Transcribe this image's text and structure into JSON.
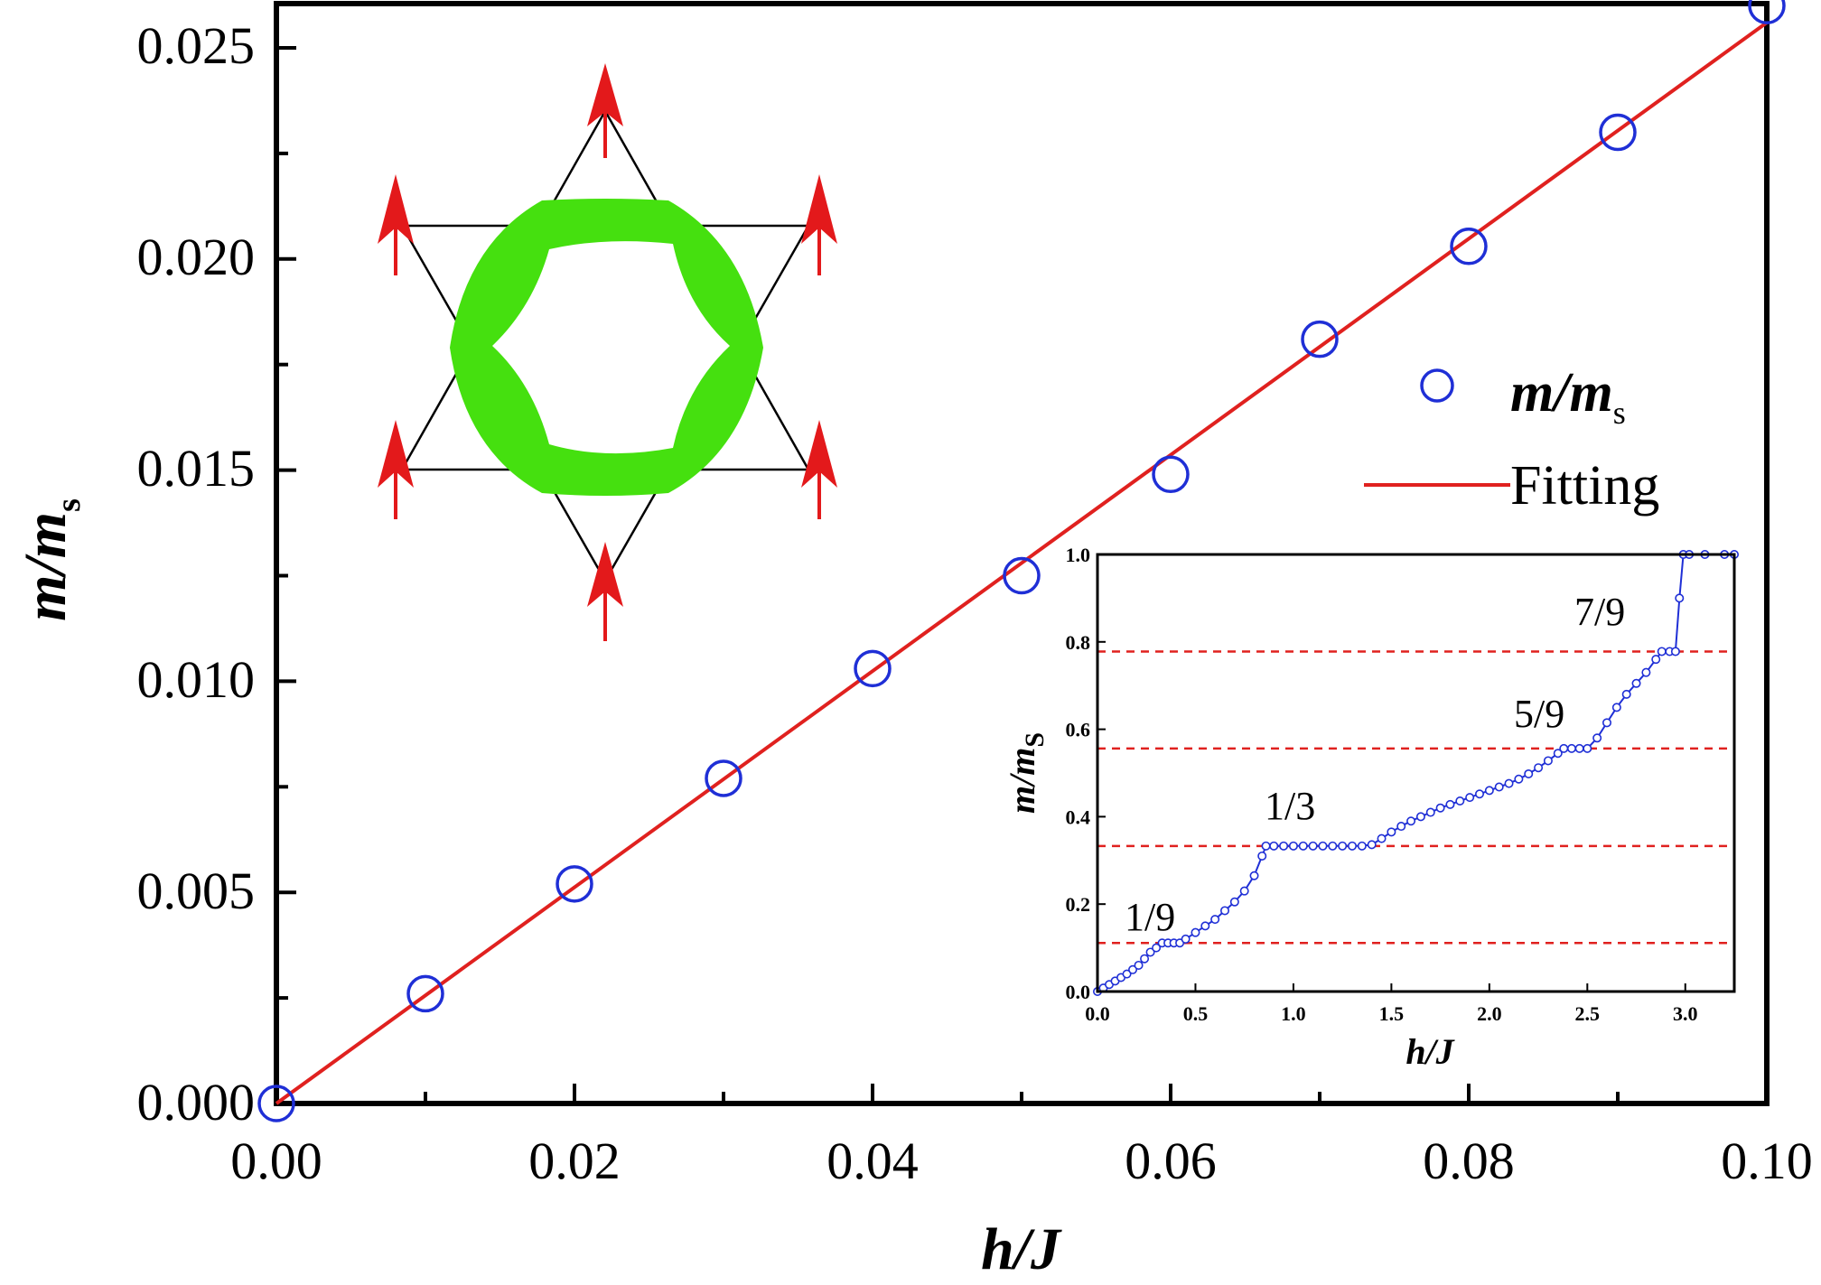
{
  "chart_data": [
    {
      "type": "scatter",
      "xlabel": "h/J",
      "ylabel": "m/m_s",
      "xlim": [
        0.0,
        0.1
      ],
      "ylim": [
        0.0,
        0.026
      ],
      "xticks": [
        "0.00",
        "0.02",
        "0.04",
        "0.06",
        "0.08",
        "0.10"
      ],
      "yticks": [
        "0.000",
        "0.005",
        "0.010",
        "0.015",
        "0.020",
        "0.025"
      ],
      "legend_position": "right",
      "series": [
        {
          "name": "m/m_s",
          "style": "open-circle",
          "color": "#1f2fd6",
          "x": [
            0.0,
            0.01,
            0.02,
            0.03,
            0.04,
            0.05,
            0.06,
            0.07,
            0.08,
            0.09,
            0.1
          ],
          "y": [
            0.0,
            0.0026,
            0.0052,
            0.0077,
            0.0103,
            0.0125,
            0.0149,
            0.0181,
            0.0203,
            0.023,
            0.026
          ]
        },
        {
          "name": "Fitting",
          "style": "line",
          "color": "#e0211f",
          "x": [
            0.0,
            0.1
          ],
          "y": [
            0.0,
            0.0256
          ]
        }
      ],
      "legend_labels": {
        "symbol_main": "m/m",
        "symbol_sub": "s",
        "fit": "Fitting"
      },
      "axis_title_parts": {
        "x_main": "h/J",
        "y_main": "m/m",
        "y_sub": "s"
      }
    },
    {
      "type": "line",
      "role": "inset",
      "xlabel": "h/J",
      "ylabel": "m/m_S",
      "xlim": [
        0.0,
        3.25
      ],
      "ylim": [
        0.0,
        1.0
      ],
      "xticks": [
        "0.0",
        "0.5",
        "1.0",
        "1.5",
        "2.0",
        "2.5",
        "3.0"
      ],
      "yticks": [
        "0.0",
        "0.2",
        "0.4",
        "0.6",
        "0.8",
        "1.0"
      ],
      "axis_title_parts": {
        "x_main": "h/J",
        "y_main": "m/m",
        "y_sub": "S"
      },
      "plateaus": [
        {
          "label": "1/9",
          "y": 0.111
        },
        {
          "label": "1/3",
          "y": 0.333
        },
        {
          "label": "5/9",
          "y": 0.556
        },
        {
          "label": "7/9",
          "y": 0.778
        }
      ],
      "series": [
        {
          "style": "line-open-circle",
          "color": "#1f2fd6",
          "x": [
            0.0,
            0.03,
            0.06,
            0.09,
            0.12,
            0.15,
            0.18,
            0.21,
            0.24,
            0.27,
            0.3,
            0.33,
            0.36,
            0.39,
            0.42,
            0.45,
            0.5,
            0.55,
            0.6,
            0.65,
            0.7,
            0.75,
            0.8,
            0.84,
            0.86,
            0.9,
            0.95,
            1.0,
            1.05,
            1.1,
            1.15,
            1.2,
            1.25,
            1.3,
            1.35,
            1.4,
            1.45,
            1.5,
            1.55,
            1.6,
            1.65,
            1.7,
            1.75,
            1.8,
            1.85,
            1.9,
            1.95,
            2.0,
            2.05,
            2.1,
            2.15,
            2.2,
            2.25,
            2.3,
            2.35,
            2.38,
            2.42,
            2.46,
            2.5,
            2.55,
            2.6,
            2.65,
            2.7,
            2.75,
            2.8,
            2.85,
            2.88,
            2.92,
            2.95,
            2.97,
            2.99,
            3.02,
            3.1,
            3.2,
            3.25
          ],
          "y": [
            0.0,
            0.008,
            0.016,
            0.024,
            0.032,
            0.04,
            0.05,
            0.06,
            0.075,
            0.09,
            0.1,
            0.111,
            0.111,
            0.111,
            0.111,
            0.12,
            0.135,
            0.15,
            0.165,
            0.185,
            0.205,
            0.23,
            0.265,
            0.31,
            0.333,
            0.333,
            0.333,
            0.333,
            0.333,
            0.333,
            0.333,
            0.333,
            0.333,
            0.333,
            0.333,
            0.336,
            0.35,
            0.365,
            0.378,
            0.39,
            0.4,
            0.41,
            0.42,
            0.428,
            0.436,
            0.444,
            0.452,
            0.46,
            0.468,
            0.476,
            0.486,
            0.498,
            0.512,
            0.528,
            0.545,
            0.556,
            0.556,
            0.556,
            0.556,
            0.58,
            0.615,
            0.65,
            0.68,
            0.705,
            0.73,
            0.76,
            0.778,
            0.778,
            0.778,
            0.9,
            1.0,
            1.0,
            1.0,
            1.0,
            1.0
          ]
        }
      ]
    }
  ],
  "colors": {
    "marker": "#1f2fd6",
    "fit_line": "#e0211f",
    "plateau_line": "#e0211f",
    "spin_arrow": "#e3191b",
    "ring": "#45e00f",
    "lattice": "#000000"
  },
  "illustration": {
    "kind": "kagome star lattice with spin arrows and green ring",
    "spins": 6
  }
}
